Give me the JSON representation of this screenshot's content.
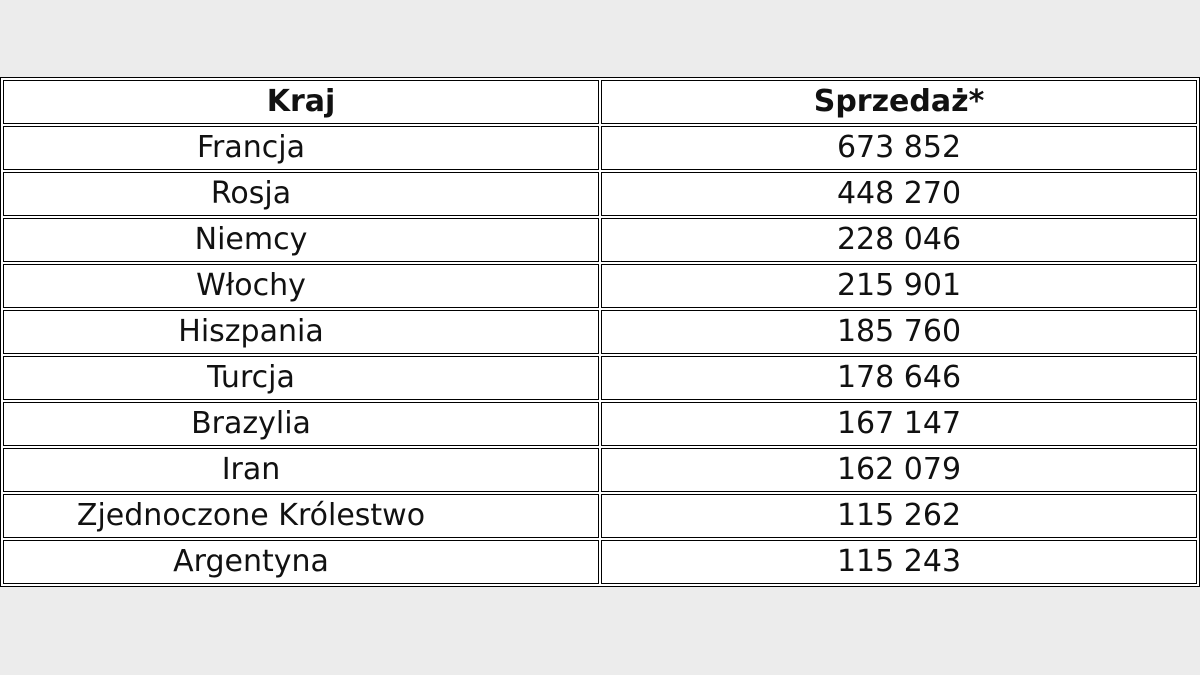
{
  "table": {
    "header": [
      "Kraj",
      "Sprzedaż*"
    ],
    "rows": [
      [
        "Francja",
        "673 852"
      ],
      [
        "Rosja",
        "448 270"
      ],
      [
        "Niemcy",
        "228 046"
      ],
      [
        "Włochy",
        "215 901"
      ],
      [
        "Hiszpania",
        "185 760"
      ],
      [
        "Turcja",
        "178 646"
      ],
      [
        "Brazylia",
        "167 147"
      ],
      [
        "Iran",
        "162 079"
      ],
      [
        "Zjednoczone Królestwo",
        "115 262"
      ],
      [
        "Argentyna",
        "115 243"
      ]
    ]
  }
}
